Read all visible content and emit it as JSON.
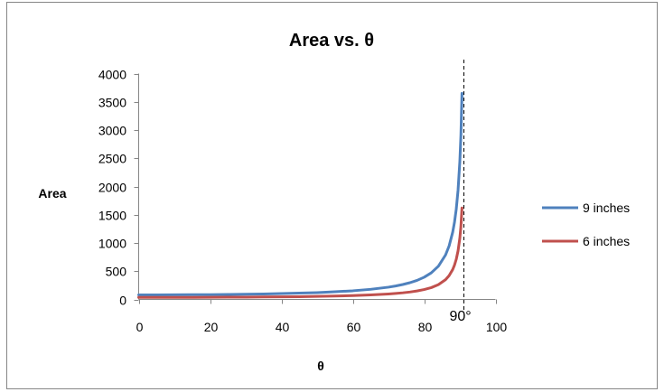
{
  "chart_data": {
    "type": "line",
    "title": "Area vs. θ",
    "xlabel": "θ",
    "ylabel": "Area",
    "xlim": [
      0,
      100
    ],
    "ylim": [
      0,
      4000
    ],
    "xticks": [
      0,
      20,
      40,
      60,
      80,
      100
    ],
    "yticks": [
      0,
      500,
      1000,
      1500,
      2000,
      2500,
      3000,
      3500,
      4000
    ],
    "grid": false,
    "legend_position": "right",
    "x": [
      0,
      5,
      10,
      15,
      20,
      25,
      30,
      35,
      40,
      45,
      50,
      55,
      60,
      65,
      70,
      72,
      74,
      76,
      78,
      80,
      82,
      84,
      86,
      87,
      88,
      88.5,
      89,
      89.5,
      90,
      90.3,
      90.6
    ],
    "series": [
      {
        "name": "9 inches",
        "color": "#4F81BD",
        "values": [
          81,
          81,
          82,
          83,
          85,
          88,
          92,
          97,
          103,
          111,
          121,
          135,
          153,
          179,
          217,
          238,
          264,
          296,
          337,
          393,
          471,
          589,
          788,
          948,
          1191,
          1366,
          1601,
          1934,
          2443,
          2901,
          3650
        ]
      },
      {
        "name": "6 inches",
        "color": "#C0504D",
        "values": [
          36,
          36,
          36,
          37,
          38,
          39,
          41,
          43,
          46,
          49,
          54,
          60,
          68,
          80,
          97,
          106,
          117,
          131,
          150,
          175,
          209,
          262,
          350,
          422,
          529,
          607,
          712,
          860,
          1086,
          1289,
          1620
        ]
      }
    ],
    "annotations": [
      {
        "type": "vline",
        "x": 91,
        "style": "dashed",
        "color": "#000000",
        "label": "90°"
      }
    ]
  }
}
